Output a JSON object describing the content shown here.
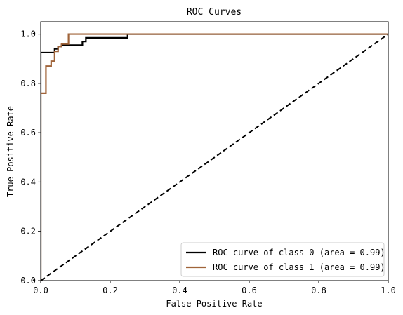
{
  "chart_data": {
    "type": "line",
    "title": "ROC Curves",
    "xlabel": "False Positive Rate",
    "ylabel": "True Positive Rate",
    "xlim": [
      0.0,
      1.0
    ],
    "ylim": [
      0.0,
      1.05
    ],
    "xticks": [
      "0.0",
      "0.2",
      "0.4",
      "0.6",
      "0.8",
      "1.0"
    ],
    "yticks": [
      "0.0",
      "0.2",
      "0.4",
      "0.6",
      "0.8",
      "1.0"
    ],
    "grid": false,
    "legend_position": "lower-right",
    "series": [
      {
        "name": "ROC curve of class 0 (area = 0.99)",
        "color": "#000000",
        "x": [
          0.0,
          0.0,
          0.0,
          0.04,
          0.04,
          0.05,
          0.05,
          0.06,
          0.06,
          0.12,
          0.12,
          0.13,
          0.13,
          0.25,
          0.25,
          1.0
        ],
        "y": [
          0.0,
          0.925,
          0.925,
          0.925,
          0.94,
          0.94,
          0.95,
          0.95,
          0.955,
          0.955,
          0.97,
          0.97,
          0.985,
          0.985,
          1.0,
          1.0
        ]
      },
      {
        "name": "ROC curve of class 1 (area = 0.99)",
        "color": "#a0643a",
        "x": [
          0.0,
          0.0,
          0.0,
          0.015,
          0.015,
          0.03,
          0.03,
          0.04,
          0.04,
          0.05,
          0.05,
          0.06,
          0.06,
          0.08,
          0.08,
          1.0
        ],
        "y": [
          0.0,
          0.76,
          0.76,
          0.76,
          0.87,
          0.87,
          0.89,
          0.89,
          0.93,
          0.93,
          0.95,
          0.95,
          0.96,
          0.96,
          1.0,
          1.0
        ]
      }
    ],
    "reference_line": {
      "x": [
        0.0,
        1.0
      ],
      "y": [
        0.0,
        1.0
      ],
      "style": "dashed",
      "color": "#000000"
    }
  }
}
